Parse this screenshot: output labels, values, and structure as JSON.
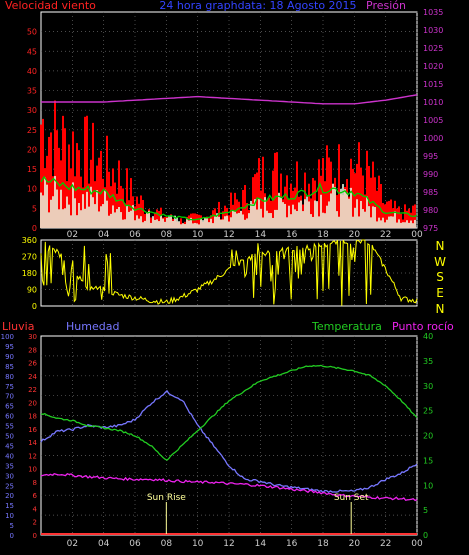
{
  "header": {
    "wind_label": "Velocidad viento",
    "title": "24 hora graphdata: 18 Agosto 2015",
    "pressure_label": "Presión"
  },
  "mid": {
    "dir_labels": [
      "N",
      "W",
      "S",
      "E",
      "N"
    ]
  },
  "bottom": {
    "rain_label": "Lluvia",
    "hum_label": "Humedad",
    "temp_label": "Temperatura",
    "dew_label": "Punto rocío",
    "sunrise": "Sun Rise",
    "sunset": "Sun Set"
  },
  "colors": {
    "wind": "#ff0000",
    "gust": "#00cc00",
    "pressure": "#cc33cc",
    "direction": "#ffff00",
    "rain": "#ff3333",
    "humidity": "#7777ff",
    "temperature": "#22cc22",
    "dewpoint": "#ee22ee",
    "sunmark": "#ffff99"
  },
  "chart_data": [
    {
      "type": "line",
      "title": "24 hora graphdata: 18 Agosto 2015",
      "x_ticks": [
        "02",
        "04",
        "06",
        "08",
        "10",
        "12",
        "14",
        "16",
        "18",
        "20",
        "22",
        "00"
      ],
      "y_left": {
        "label": "Velocidad viento",
        "ticks": [
          0,
          5,
          10,
          15,
          20,
          25,
          30,
          35,
          40,
          45,
          50,
          55
        ],
        "range": [
          0,
          55
        ]
      },
      "y_right": {
        "label": "Presión",
        "ticks": [
          975,
          980,
          985,
          990,
          995,
          1000,
          1005,
          1010,
          1015,
          1020,
          1025,
          1030,
          1035
        ],
        "range": [
          975,
          1035
        ]
      },
      "series": [
        {
          "name": "Presión",
          "axis": "right",
          "x": [
            0,
            2,
            4,
            6,
            8,
            10,
            12,
            14,
            16,
            18,
            20,
            22,
            24
          ],
          "values": [
            1010,
            1010,
            1010,
            1010.5,
            1011,
            1011.5,
            1011,
            1010.5,
            1010,
            1009.5,
            1009.5,
            1010.5,
            1012
          ]
        },
        {
          "axis": "left",
          "x": [
            0,
            1,
            2,
            3,
            4,
            5,
            6,
            7,
            8,
            9,
            10,
            11,
            12,
            13,
            14,
            15,
            16,
            17,
            18,
            19,
            20,
            21,
            22,
            23,
            24
          ],
          "values": [
            28,
            24,
            22,
            20,
            17,
            14,
            8,
            5,
            3,
            2,
            3,
            4,
            6,
            8,
            14,
            15,
            14,
            13,
            15,
            16,
            17,
            14,
            6,
            4,
            5
          ]
        },
        {
          "axis": "left",
          "x": [
            0,
            2,
            4,
            6,
            8,
            10,
            12,
            14,
            16,
            18,
            20,
            22,
            24
          ],
          "values": [
            12,
            10,
            9,
            5,
            3,
            2,
            4,
            7,
            8,
            10,
            9,
            4,
            3
          ]
        }
      ]
    },
    {
      "type": "line",
      "y_ticks": [
        0,
        90,
        180,
        270,
        360
      ],
      "range": [
        0,
        360
      ],
      "series": [
        {
          "axis": "left",
          "x": [
            0,
            1,
            2,
            3,
            4,
            5,
            6,
            7,
            8,
            9,
            10,
            11,
            12,
            13,
            14,
            15,
            16,
            17,
            18,
            19,
            20,
            21,
            22,
            23,
            24
          ],
          "values": [
            350,
            300,
            200,
            100,
            90,
            60,
            45,
            30,
            20,
            50,
            90,
            140,
            200,
            250,
            290,
            300,
            310,
            320,
            330,
            350,
            355,
            345,
            200,
            40,
            30
          ]
        }
      ]
    },
    {
      "type": "line",
      "x_ticks": [
        "02",
        "04",
        "06",
        "08",
        "10",
        "12",
        "14",
        "16",
        "18",
        "20",
        "22",
        "00"
      ],
      "axes": {
        "rain": {
          "label": "Lluvia",
          "ticks": [
            0,
            2,
            4,
            6,
            8,
            10,
            12,
            14,
            16,
            18,
            20,
            22,
            24,
            26,
            28,
            30
          ],
          "range": [
            0,
            30
          ]
        },
        "humidity": {
          "label": "Humedad",
          "ticks": [
            0,
            5,
            10,
            15,
            20,
            25,
            30,
            35,
            40,
            45,
            50,
            55,
            60,
            65,
            70,
            75,
            80,
            85,
            90,
            95,
            100
          ],
          "range": [
            0,
            100
          ]
        },
        "temperature": {
          "label": "Temperatura",
          "ticks": [
            0,
            5,
            10,
            15,
            20,
            25,
            30,
            35,
            40
          ],
          "range": [
            0,
            40
          ]
        },
        "dewpoint": {
          "label": "Punto rocío",
          "ticks": [
            0,
            5,
            10,
            15,
            20,
            25,
            30,
            35,
            40
          ],
          "range": [
            0,
            40
          ]
        }
      },
      "series": [
        {
          "name": "Humedad",
          "axis": "humidity",
          "x": [
            0,
            1,
            2,
            3,
            4,
            5,
            6,
            7,
            8,
            9,
            10,
            11,
            12,
            13,
            14,
            15,
            16,
            17,
            18,
            19,
            20,
            21,
            22,
            23,
            24
          ],
          "values": [
            47,
            52,
            53,
            55,
            54,
            55,
            58,
            66,
            72,
            68,
            55,
            45,
            35,
            28,
            27,
            25,
            24,
            23,
            22,
            22,
            22,
            24,
            28,
            31,
            36
          ]
        },
        {
          "name": "Temperatura",
          "axis": "temperature",
          "x": [
            0,
            1,
            2,
            3,
            4,
            5,
            6,
            7,
            8,
            9,
            10,
            11,
            12,
            13,
            14,
            15,
            16,
            17,
            18,
            19,
            20,
            21,
            22,
            23,
            24
          ],
          "values": [
            24.5,
            23.5,
            23,
            22,
            21.5,
            21,
            20,
            18,
            15,
            18,
            21,
            24,
            27,
            29,
            31,
            32,
            33,
            34,
            34,
            33.5,
            33,
            32,
            30,
            27,
            23.5
          ]
        },
        {
          "name": "Punto rocío",
          "axis": "dewpoint",
          "x": [
            0,
            1,
            2,
            3,
            4,
            5,
            6,
            7,
            8,
            9,
            10,
            11,
            12,
            13,
            14,
            15,
            16,
            17,
            18,
            19,
            20,
            21,
            22,
            23,
            24
          ],
          "values": [
            12,
            12.3,
            12,
            11.7,
            11.5,
            11.3,
            11.2,
            11.2,
            11,
            10.8,
            10.6,
            10.6,
            10.3,
            10.2,
            9.9,
            9.6,
            9.2,
            8.8,
            8.5,
            8,
            7.8,
            7.6,
            7.4,
            7.3,
            7
          ]
        },
        {
          "name": "Lluvia",
          "axis": "rain",
          "x": [
            0,
            24
          ],
          "values": [
            0,
            0
          ]
        }
      ],
      "annotations": [
        {
          "text": "Sun Rise",
          "x": 8.0
        },
        {
          "text": "Sun Set",
          "x": 19.8
        }
      ]
    }
  ]
}
